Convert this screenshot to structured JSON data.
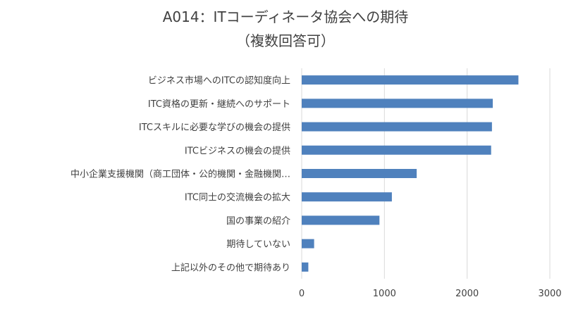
{
  "chart_data": {
    "type": "bar",
    "orientation": "horizontal",
    "title": "A014：ITコーディネータ協会への期待",
    "subtitle": "（複数回答可）",
    "categories": [
      "ビジネス市場へのITCの認知度向上",
      "ITC資格の更新・継続へのサポート",
      "ITCスキルに必要な学びの機会の提供",
      "ITCビジネスの機会の提供",
      "中小企業支援機関（商工団体・公的機関・金融機関…",
      "ITC同士の交流機会の拡大",
      "国の事業の紹介",
      "期待していない",
      "上記以外のその他で期待あり"
    ],
    "values": [
      2620,
      2310,
      2300,
      2290,
      1390,
      1090,
      940,
      150,
      80
    ],
    "xlim": [
      0,
      3000
    ],
    "xticks": [
      0,
      1000,
      2000,
      3000
    ],
    "grid": true,
    "bar_color": "#4f81bd"
  }
}
